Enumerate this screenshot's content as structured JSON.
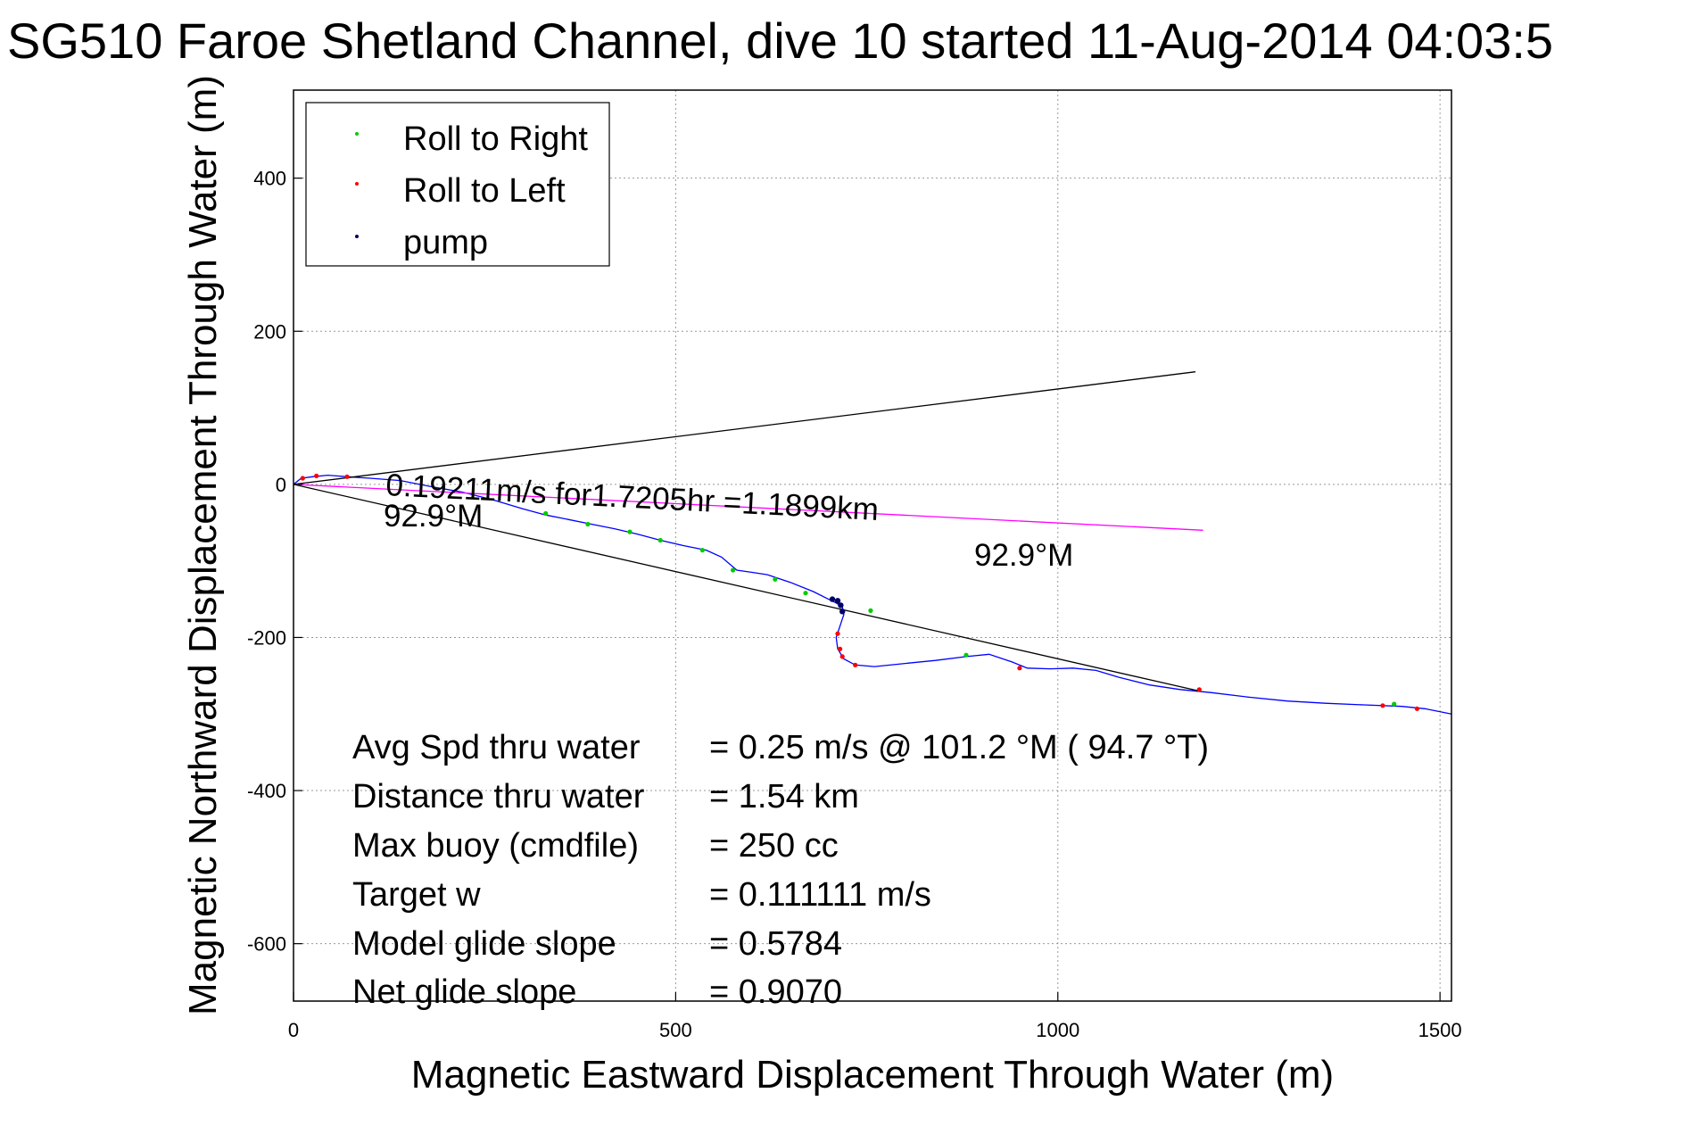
{
  "chart_data": {
    "type": "line",
    "title": "SG510 Faroe Shetland Channel, dive 10 started 11-Aug-2014 04:03:5",
    "xlabel": "Magnetic Eastward Displacement Through Water (m)",
    "ylabel": "Magnetic Northward Displacement Through Water (m)",
    "xlim": [
      0,
      1515
    ],
    "ylim": [
      -675,
      515
    ],
    "xticks": [
      0,
      500,
      1000,
      1500
    ],
    "yticks": [
      -600,
      -400,
      -200,
      0,
      200,
      400
    ],
    "grid": true,
    "legend": {
      "placement": "top-left",
      "entries": [
        {
          "label": "Roll to Right",
          "color": "#00cc00"
        },
        {
          "label": "Roll to Left",
          "color": "#ff0000"
        },
        {
          "label": "pump",
          "color": "#000066"
        }
      ]
    },
    "series": [
      {
        "color": "#0000ff",
        "x": [
          0,
          10,
          25,
          45,
          70,
          100,
          140,
          180,
          220,
          260,
          300,
          330,
          360,
          390,
          420,
          450,
          480,
          510,
          540,
          560,
          580,
          600,
          620,
          650,
          680,
          700,
          710,
          718,
          720,
          715,
          710,
          712,
          720,
          735,
          760,
          800,
          840,
          880,
          910,
          940,
          960,
          990,
          1020,
          1050,
          1080,
          1120,
          1160,
          1200,
          1250,
          1300,
          1350,
          1400,
          1450,
          1480,
          1515
        ],
        "y": [
          0,
          8,
          10,
          12,
          10,
          8,
          5,
          -3,
          -10,
          -20,
          -32,
          -40,
          -46,
          -52,
          -58,
          -65,
          -73,
          -80,
          -86,
          -95,
          -112,
          -115,
          -118,
          -128,
          -140,
          -150,
          -155,
          -160,
          -170,
          -185,
          -200,
          -215,
          -228,
          -236,
          -238,
          -234,
          -230,
          -225,
          -222,
          -232,
          -240,
          -241,
          -240,
          -243,
          -252,
          -262,
          -268,
          -272,
          -278,
          -283,
          -286,
          -288,
          -290,
          -293,
          -300
        ]
      },
      {
        "color": "#000000",
        "x": [
          0,
          1180
        ],
        "y": [
          0,
          147
        ]
      },
      {
        "color": "#000000",
        "x": [
          0,
          1185
        ],
        "y": [
          0,
          -270
        ]
      },
      {
        "color": "#ff00ff",
        "x": [
          0,
          1190
        ],
        "y": [
          0,
          -60
        ]
      }
    ],
    "markers": {
      "roll_right": {
        "color": "#00cc00",
        "x": [
          330,
          385,
          440,
          480,
          535,
          575,
          630,
          670,
          755,
          880,
          1440
        ],
        "y": [
          -38,
          -52,
          -62,
          -73,
          -86,
          -112,
          -124,
          -142,
          -165,
          -223,
          -287
        ]
      },
      "roll_left": {
        "color": "#ff0000",
        "x": [
          12,
          30,
          70,
          712,
          715,
          718,
          735,
          950,
          1185,
          1425,
          1470
        ],
        "y": [
          8,
          11,
          10,
          -195,
          -215,
          -225,
          -236,
          -240,
          -268,
          -289,
          -293
        ]
      },
      "pump": {
        "color": "#000066",
        "x": [
          705,
          712,
          716,
          718
        ],
        "y": [
          -150,
          -152,
          -158,
          -166
        ]
      }
    },
    "annotations": {
      "vector_text_1": "0.19211m/s for1.7205hr =1.1899km",
      "vector_text_2": "92.9°M",
      "vector_text_3": "92.9°M"
    },
    "stats": [
      {
        "label": "Avg Spd thru water",
        "value": "=  0.25 m/s @ 101.2 °M ( 94.7 °T)"
      },
      {
        "label": "Distance thru water",
        "value": "=  1.54 km"
      },
      {
        "label": "Max buoy (cmdfile)",
        "value": "= 250 cc"
      },
      {
        "label": "Target w",
        "value": "= 0.111111 m/s"
      },
      {
        "label": "Model glide slope",
        "value": "= 0.5784"
      },
      {
        "label": "Net glide slope",
        "value": "= 0.9070"
      }
    ]
  }
}
